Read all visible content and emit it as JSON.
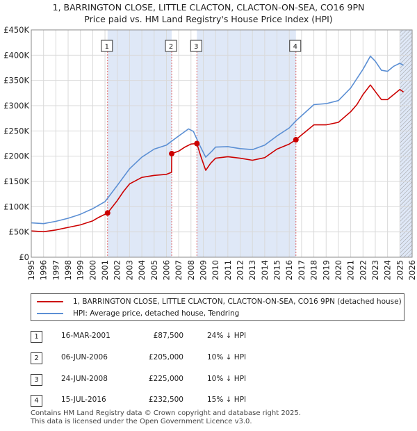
{
  "title_line1": "1, BARRINGTON CLOSE, LITTLE CLACTON, CLACTON-ON-SEA, CO16 9PN",
  "title_line2": "Price paid vs. HM Land Registry's House Price Index (HPI)",
  "chart_data": {
    "type": "line",
    "title": "1, BARRINGTON CLOSE, LITTLE CLACTON, CLACTON-ON-SEA, CO16 9PN — Price paid vs. HM Land Registry's House Price Index (HPI)",
    "xlim": [
      1995,
      2026
    ],
    "ylim": [
      0,
      450000
    ],
    "x_ticks": [
      "1995",
      "1996",
      "1997",
      "1998",
      "1999",
      "2000",
      "2001",
      "2002",
      "2003",
      "2004",
      "2005",
      "2006",
      "2007",
      "2008",
      "2009",
      "2010",
      "2011",
      "2012",
      "2013",
      "2014",
      "2015",
      "2016",
      "2017",
      "2018",
      "2019",
      "2020",
      "2021",
      "2022",
      "2023",
      "2024",
      "2025",
      "2026"
    ],
    "y_ticks": [
      {
        "value": 0,
        "label": "£0"
      },
      {
        "value": 50000,
        "label": "£50K"
      },
      {
        "value": 100000,
        "label": "£100K"
      },
      {
        "value": 150000,
        "label": "£150K"
      },
      {
        "value": 200000,
        "label": "£200K"
      },
      {
        "value": 250000,
        "label": "£250K"
      },
      {
        "value": 300000,
        "label": "£300K"
      },
      {
        "value": 350000,
        "label": "£350K"
      },
      {
        "value": 400000,
        "label": "£400K"
      },
      {
        "value": 450000,
        "label": "£450K"
      }
    ],
    "colors": {
      "property": "#cc0000",
      "hpi": "#5b8fd4",
      "shade": "#dfe8f7",
      "grid": "#d9d9d9",
      "marker_line": "#e06666"
    },
    "shaded_ranges": [
      [
        2001.21,
        2006.43
      ],
      [
        2008.48,
        2016.54
      ],
      [
        2025.0,
        2026.0
      ]
    ],
    "hatched_range": [
      2025.0,
      2026.0
    ],
    "series": [
      {
        "name": "1, BARRINGTON CLOSE, LITTLE CLACTON, CLACTON-ON-SEA, CO16 9PN (detached house)",
        "key": "property",
        "points": [
          [
            1995.0,
            52000
          ],
          [
            1996.0,
            50500
          ],
          [
            1997.0,
            54000
          ],
          [
            1998.0,
            59000
          ],
          [
            1999.0,
            64000
          ],
          [
            2000.0,
            72000
          ],
          [
            2000.5,
            79000
          ],
          [
            2001.21,
            87500
          ],
          [
            2002.0,
            112000
          ],
          [
            2002.5,
            130000
          ],
          [
            2003.0,
            145000
          ],
          [
            2004.0,
            158000
          ],
          [
            2005.0,
            162000
          ],
          [
            2006.0,
            164000
          ],
          [
            2006.42,
            168000
          ],
          [
            2006.43,
            205000
          ],
          [
            2007.0,
            210000
          ],
          [
            2007.5,
            218000
          ],
          [
            2008.0,
            224000
          ],
          [
            2008.48,
            225000
          ],
          [
            2008.8,
            200000
          ],
          [
            2009.2,
            172000
          ],
          [
            2009.6,
            186000
          ],
          [
            2010.0,
            196000
          ],
          [
            2011.0,
            199000
          ],
          [
            2012.0,
            196000
          ],
          [
            2013.0,
            192000
          ],
          [
            2014.0,
            197000
          ],
          [
            2015.0,
            214000
          ],
          [
            2016.0,
            224000
          ],
          [
            2016.54,
            232500
          ],
          [
            2017.0,
            242000
          ],
          [
            2018.0,
            262000
          ],
          [
            2019.0,
            262000
          ],
          [
            2020.0,
            267000
          ],
          [
            2021.0,
            288000
          ],
          [
            2021.5,
            302000
          ],
          [
            2022.0,
            322000
          ],
          [
            2022.6,
            341000
          ],
          [
            2023.0,
            328000
          ],
          [
            2023.5,
            312000
          ],
          [
            2024.0,
            312000
          ],
          [
            2024.5,
            322000
          ],
          [
            2025.0,
            332000
          ],
          [
            2025.3,
            327000
          ]
        ]
      },
      {
        "name": "HPI: Average price, detached house, Tendring",
        "key": "hpi",
        "points": [
          [
            1995.0,
            68000
          ],
          [
            1996.0,
            66500
          ],
          [
            1997.0,
            71000
          ],
          [
            1998.0,
            77000
          ],
          [
            1999.0,
            85000
          ],
          [
            2000.0,
            96000
          ],
          [
            2001.0,
            110000
          ],
          [
            2002.0,
            142000
          ],
          [
            2003.0,
            175000
          ],
          [
            2004.0,
            198000
          ],
          [
            2005.0,
            214000
          ],
          [
            2006.0,
            222000
          ],
          [
            2007.0,
            240000
          ],
          [
            2007.8,
            254000
          ],
          [
            2008.2,
            249000
          ],
          [
            2008.7,
            222000
          ],
          [
            2009.2,
            198000
          ],
          [
            2009.7,
            210000
          ],
          [
            2010.0,
            218000
          ],
          [
            2011.0,
            219000
          ],
          [
            2012.0,
            215000
          ],
          [
            2013.0,
            213000
          ],
          [
            2014.0,
            222000
          ],
          [
            2015.0,
            240000
          ],
          [
            2016.0,
            256000
          ],
          [
            2016.54,
            270000
          ],
          [
            2017.0,
            280000
          ],
          [
            2018.0,
            302000
          ],
          [
            2019.0,
            304000
          ],
          [
            2020.0,
            310000
          ],
          [
            2021.0,
            335000
          ],
          [
            2022.0,
            372000
          ],
          [
            2022.6,
            398000
          ],
          [
            2023.0,
            388000
          ],
          [
            2023.5,
            370000
          ],
          [
            2024.0,
            368000
          ],
          [
            2024.5,
            378000
          ],
          [
            2025.0,
            384000
          ],
          [
            2025.3,
            380000
          ]
        ]
      }
    ],
    "sale_markers": [
      {
        "n": "1",
        "x": 2001.21,
        "y": 87500
      },
      {
        "n": "2",
        "x": 2006.43,
        "y": 205000
      },
      {
        "n": "3",
        "x": 2008.48,
        "y": 225000
      },
      {
        "n": "4",
        "x": 2016.54,
        "y": 232500
      }
    ]
  },
  "legend": [
    {
      "label": "1, BARRINGTON CLOSE, LITTLE CLACTON, CLACTON-ON-SEA, CO16 9PN (detached house)",
      "color": "#cc0000"
    },
    {
      "label": "HPI: Average price, detached house, Tendring",
      "color": "#5b8fd4"
    }
  ],
  "sales": [
    {
      "n": "1",
      "date": "16-MAR-2001",
      "price": "£87,500",
      "hpi": "24% ↓ HPI"
    },
    {
      "n": "2",
      "date": "06-JUN-2006",
      "price": "£205,000",
      "hpi": "10% ↓ HPI"
    },
    {
      "n": "3",
      "date": "24-JUN-2008",
      "price": "£225,000",
      "hpi": "10% ↓ HPI"
    },
    {
      "n": "4",
      "date": "15-JUL-2016",
      "price": "£232,500",
      "hpi": "15% ↓ HPI"
    }
  ],
  "footer": {
    "line1": "Contains HM Land Registry data © Crown copyright and database right 2025.",
    "line2": "This data is licensed under the Open Government Licence v3.0."
  }
}
